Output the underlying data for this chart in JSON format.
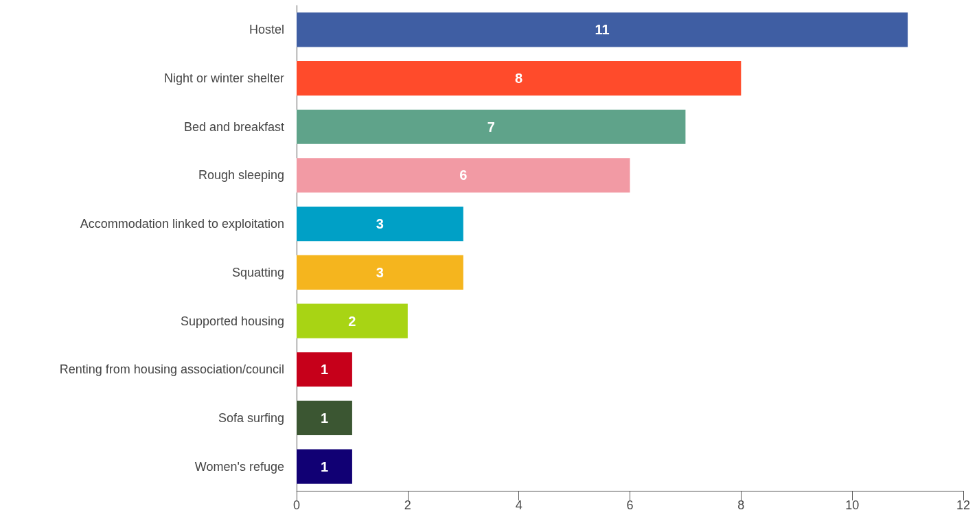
{
  "chart_data": {
    "type": "bar",
    "orientation": "horizontal",
    "categories": [
      "Hostel",
      "Night or winter shelter",
      "Bed and breakfast",
      "Rough sleeping",
      "Accommodation linked to exploitation",
      "Squatting",
      "Supported housing",
      "Renting from housing association/council",
      "Sofa surfing",
      "Women's refuge"
    ],
    "values": [
      11,
      8,
      7,
      6,
      3,
      3,
      2,
      1,
      1,
      1
    ],
    "colors": [
      "#3f5ea3",
      "#ff4b2b",
      "#5fa38a",
      "#f29aa4",
      "#00a0c6",
      "#f5b51e",
      "#a8d414",
      "#c6001a",
      "#3b5632",
      "#110074"
    ],
    "xlim": [
      0,
      12
    ],
    "xticks": [
      0,
      2,
      4,
      6,
      8,
      10,
      12
    ],
    "data_labels": true
  }
}
